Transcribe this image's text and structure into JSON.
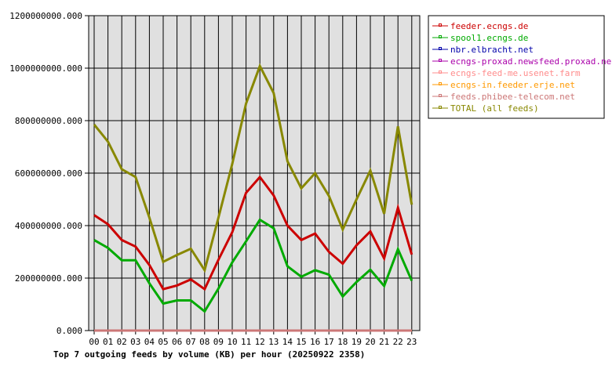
{
  "chart_data": {
    "type": "line",
    "title": "Top 7 outgoing feeds by volume (KB) per hour (20250922 2358)",
    "xlabel": "",
    "ylabel": "",
    "categories": [
      "00",
      "01",
      "02",
      "03",
      "04",
      "05",
      "06",
      "07",
      "08",
      "09",
      "10",
      "11",
      "12",
      "13",
      "14",
      "15",
      "16",
      "17",
      "18",
      "19",
      "20",
      "21",
      "22",
      "23"
    ],
    "ylim": [
      0,
      1200000000
    ],
    "yticks": [
      "0.000",
      "200000000.000",
      "400000000.000",
      "600000000.000",
      "800000000.000",
      "1000000000.000",
      "1200000000.000"
    ],
    "grid": true,
    "legend_position": "right",
    "series": [
      {
        "name": "feeder.ecngs.de",
        "color": "#cc0000",
        "values": [
          440000000,
          405000000,
          345000000,
          320000000,
          250000000,
          158000000,
          172000000,
          195000000,
          158000000,
          270000000,
          375000000,
          525000000,
          585000000,
          515000000,
          400000000,
          345000000,
          370000000,
          300000000,
          255000000,
          325000000,
          378000000,
          275000000,
          468000000,
          290000000
        ]
      },
      {
        "name": "spool1.ecngs.de",
        "color": "#00aa00",
        "values": [
          345000000,
          315000000,
          268000000,
          268000000,
          180000000,
          103000000,
          115000000,
          115000000,
          73000000,
          160000000,
          260000000,
          340000000,
          422000000,
          390000000,
          245000000,
          205000000,
          230000000,
          213000000,
          130000000,
          185000000,
          232000000,
          170000000,
          310000000,
          190000000
        ]
      },
      {
        "name": "nbr.elbracht.net",
        "color": "#0000aa",
        "values": [
          0,
          0,
          0,
          0,
          0,
          0,
          0,
          0,
          0,
          0,
          0,
          0,
          0,
          0,
          0,
          0,
          0,
          0,
          0,
          0,
          0,
          0,
          0,
          0
        ]
      },
      {
        "name": "ecngs-proxad.newsfeed.proxad.net",
        "color": "#aa00aa",
        "values": [
          0,
          0,
          0,
          0,
          0,
          0,
          0,
          0,
          0,
          0,
          0,
          0,
          0,
          0,
          0,
          0,
          0,
          0,
          0,
          0,
          0,
          0,
          0,
          0
        ]
      },
      {
        "name": "ecngs-feed-me.usenet.farm",
        "color": "#ff8c8c",
        "values": [
          0,
          0,
          0,
          0,
          0,
          0,
          0,
          0,
          0,
          0,
          0,
          0,
          0,
          0,
          0,
          0,
          0,
          0,
          0,
          0,
          0,
          0,
          0,
          0
        ]
      },
      {
        "name": "ecngs-in.feeder.erje.net",
        "color": "#ff9900",
        "values": [
          0,
          0,
          0,
          0,
          0,
          0,
          0,
          0,
          0,
          0,
          0,
          0,
          0,
          0,
          0,
          0,
          0,
          0,
          0,
          0,
          0,
          0,
          0,
          0
        ]
      },
      {
        "name": "feeds.phibee-telecom.net",
        "color": "#cc7777",
        "values": [
          0,
          0,
          0,
          0,
          0,
          0,
          0,
          0,
          0,
          0,
          0,
          0,
          0,
          0,
          0,
          0,
          0,
          0,
          0,
          0,
          0,
          0,
          0,
          0
        ]
      },
      {
        "name": "TOTAL (all feeds)",
        "color": "#888800",
        "values": [
          785000000,
          720000000,
          615000000,
          585000000,
          430000000,
          262000000,
          288000000,
          312000000,
          230000000,
          430000000,
          635000000,
          865000000,
          1008000000,
          905000000,
          645000000,
          542000000,
          600000000,
          513000000,
          385000000,
          500000000,
          610000000,
          445000000,
          778000000,
          480000000
        ]
      }
    ]
  }
}
